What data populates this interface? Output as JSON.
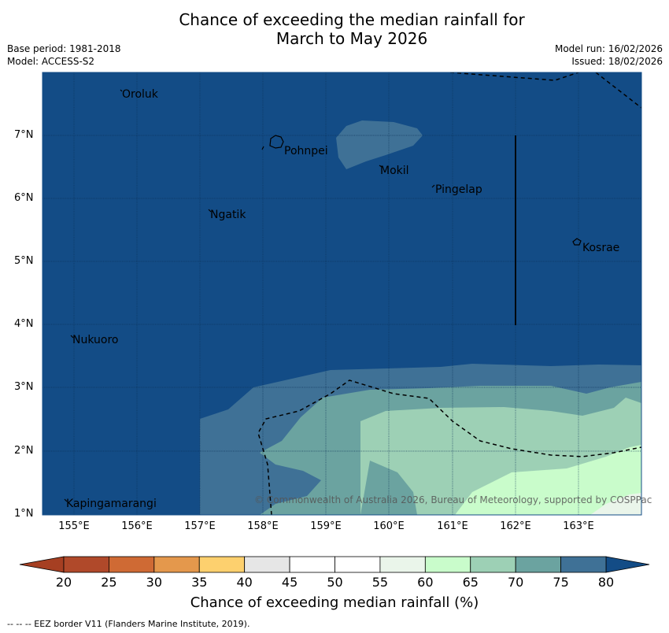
{
  "title": {
    "line1": "Chance of exceeding the median rainfall for",
    "line2": "March to May 2026"
  },
  "meta": {
    "base_period": "Base period: 1981-2018",
    "model": "Model: ACCESS-S2",
    "model_run": "Model run: 16/02/2026",
    "issued": "Issued: 18/02/2026"
  },
  "places": {
    "oroluk": "Oroluk",
    "pohnpei": "Pohnpei",
    "mokil": "Mokil",
    "pingelap": "Pingelap",
    "ngatik": "Ngatik",
    "kosrae": "Kosrae",
    "nukuoro": "Nukuoro",
    "kapingamarangi": "Kapingamarangi"
  },
  "axes": {
    "lat": [
      "7°N",
      "6°N",
      "5°N",
      "4°N",
      "3°N",
      "2°N",
      "1°N"
    ],
    "lon": [
      "155°E",
      "156°E",
      "157°E",
      "158°E",
      "159°E",
      "160°E",
      "161°E",
      "162°E",
      "163°E"
    ]
  },
  "copyright": "© Commonwealth of Australia 2026, Bureau of Meteorology, supported by COSPPac",
  "colorbar": {
    "ticks": [
      "20",
      "25",
      "30",
      "35",
      "40",
      "45",
      "50",
      "55",
      "60",
      "65",
      "70",
      "75",
      "80"
    ],
    "colors": [
      "#b0492a",
      "#cf6a34",
      "#e4984c",
      "#fdd06e",
      "#e6e6e6",
      "#ffffff",
      "#ffffff",
      "#eaf5ea",
      "#c9fccb",
      "#9dd0b5",
      "#6ba3a0",
      "#3f7196"
    ],
    "low_color": "#a63f22",
    "high_color": "#134c86",
    "title": "Chance of exceeding median rainfall (%)"
  },
  "footer": "--  --  -- EEZ border V11 (Flanders Marine Institute, 2019)."
}
